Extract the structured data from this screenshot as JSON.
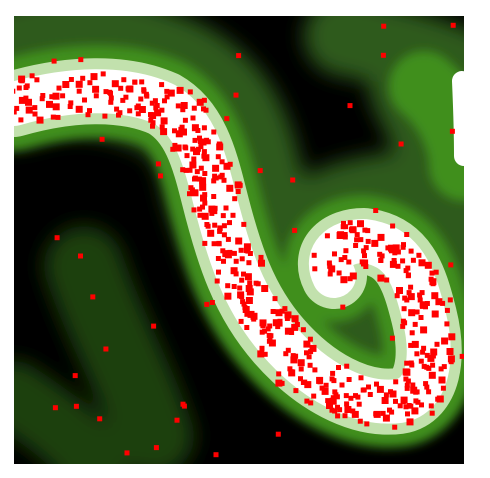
{
  "scene": {
    "name": "",
    "background_color": "#000000",
    "frame_color": "#ffffff",
    "grid_size": [
      90,
      90
    ]
  },
  "palette": {
    "empty": "#000000",
    "low_density": "#2f5a1a",
    "mid_density": "#3f8f1c",
    "high_density": "#c9e6b5",
    "core": "#ffffff",
    "agent": "#ff0000"
  },
  "legend": {
    "agents_label": "",
    "field_label": ""
  }
}
